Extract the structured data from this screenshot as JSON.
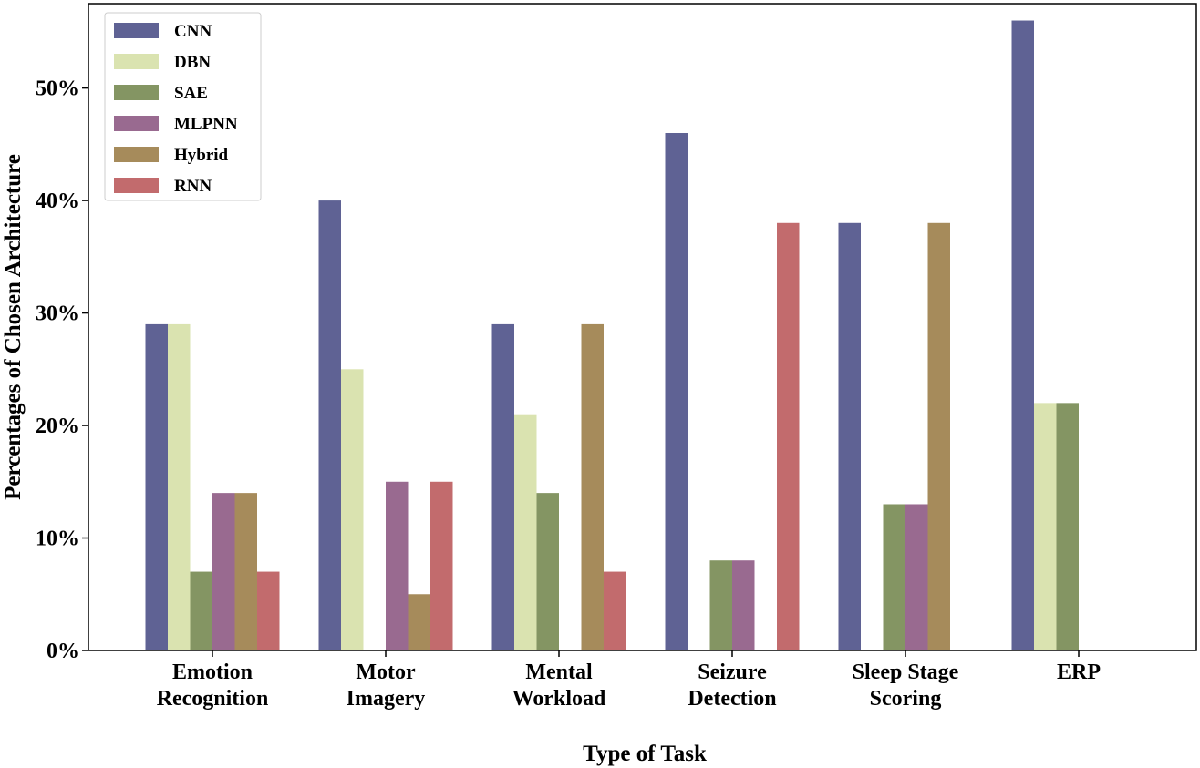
{
  "chart_data": {
    "type": "bar",
    "title": "",
    "xlabel": "Type of Task",
    "ylabel": "Percentages of Chosen Architecture",
    "ylim": [
      0,
      57.5
    ],
    "yticks": [
      0,
      10,
      20,
      30,
      40,
      50
    ],
    "ytick_labels": [
      "0%",
      "10%",
      "20%",
      "30%",
      "40%",
      "50%"
    ],
    "grid": false,
    "legend_position": "top-left",
    "categories": [
      [
        "Emotion",
        "Recognition"
      ],
      [
        "Motor",
        "Imagery"
      ],
      [
        "Mental",
        "Workload"
      ],
      [
        "Seizure",
        "Detection"
      ],
      [
        "Sleep Stage",
        "Scoring"
      ],
      [
        "ERP"
      ]
    ],
    "series": [
      {
        "name": "CNN",
        "color": "#5f6294",
        "values": [
          29,
          40,
          29,
          46,
          38,
          56
        ]
      },
      {
        "name": "DBN",
        "color": "#dae3b0",
        "values": [
          29,
          25,
          21,
          0,
          0,
          22
        ]
      },
      {
        "name": "SAE",
        "color": "#849563",
        "values": [
          7,
          0,
          14,
          8,
          13,
          22
        ]
      },
      {
        "name": "MLPNN",
        "color": "#996a90",
        "values": [
          14,
          15,
          0,
          8,
          13,
          0
        ]
      },
      {
        "name": "Hybrid",
        "color": "#a68b5b",
        "values": [
          14,
          5,
          29,
          0,
          38,
          0
        ]
      },
      {
        "name": "RNN",
        "color": "#c26b6d",
        "values": [
          7,
          15,
          7,
          38,
          0,
          0
        ]
      }
    ]
  }
}
